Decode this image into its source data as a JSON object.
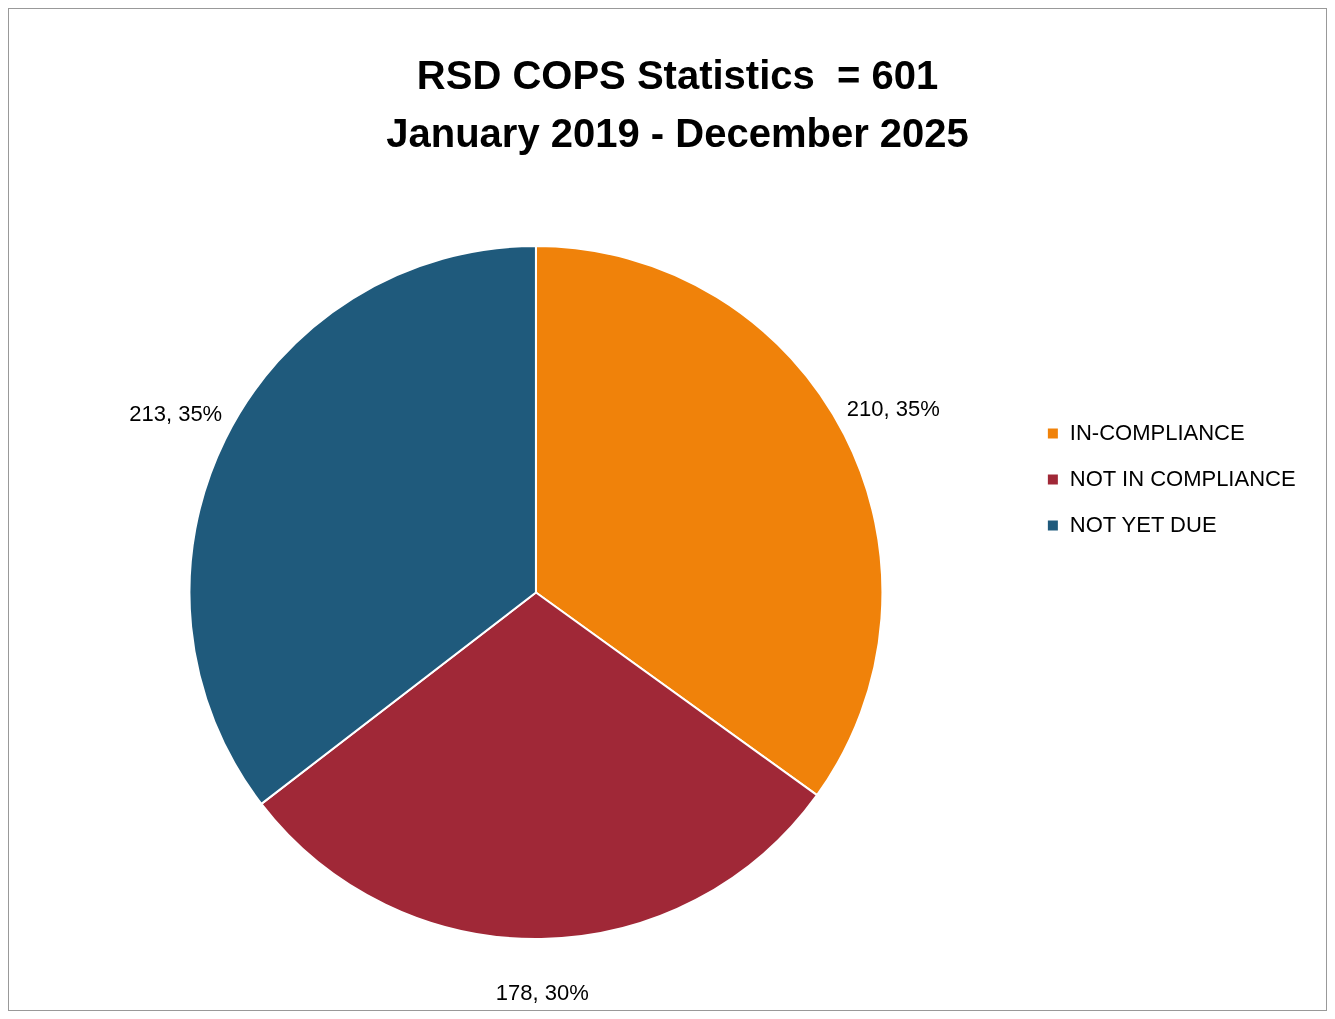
{
  "chart_data": {
    "type": "pie",
    "title": "RSD COPS Statistics  = 601",
    "subtitle": "January 2019 - December 2025",
    "categories": [
      "IN-COMPLIANCE",
      "NOT IN COMPLIANCE",
      "NOT YET DUE"
    ],
    "values": [
      210,
      178,
      213
    ],
    "colors": [
      "#f0820a",
      "#a02837",
      "#1f5a7c"
    ],
    "value_labels": [
      "210, 35%",
      "178, 30%",
      "213, 35%"
    ],
    "legend": "right"
  }
}
